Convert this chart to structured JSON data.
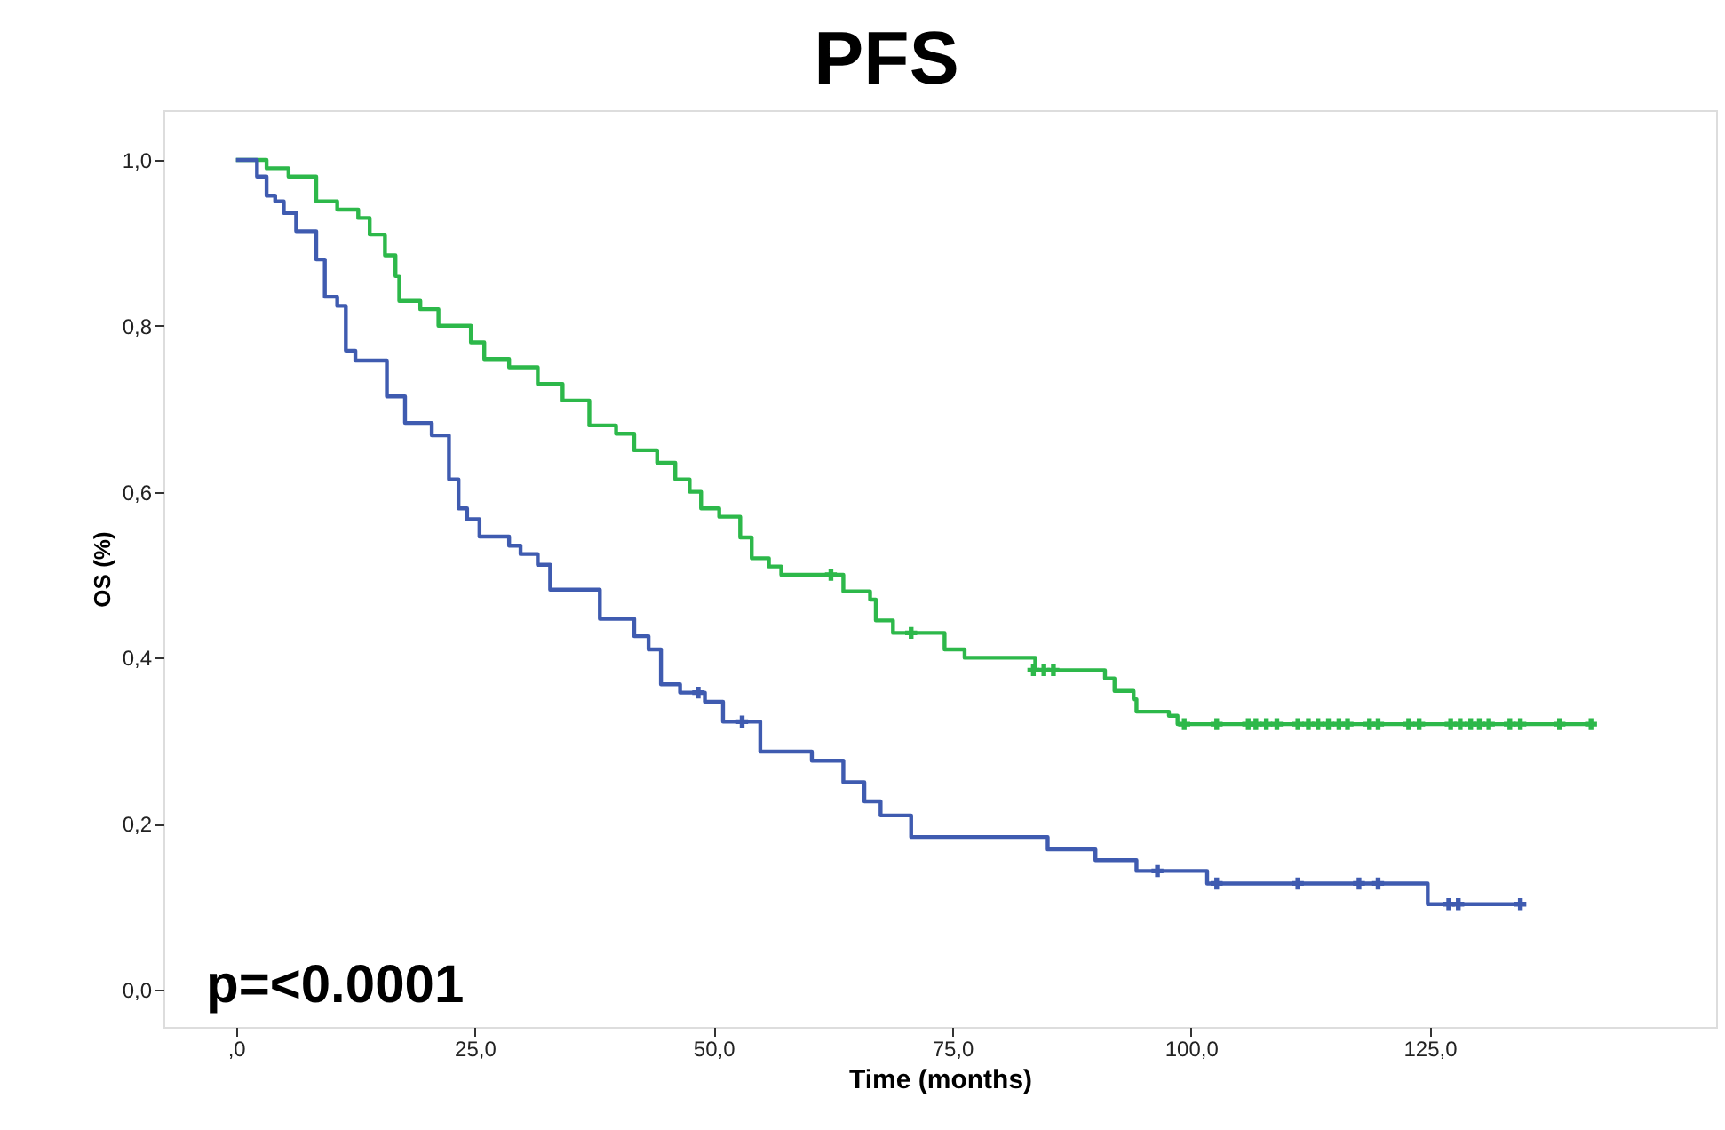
{
  "chart_data": {
    "type": "step",
    "title": "PFS",
    "xlabel": "Time (months)",
    "ylabel": "OS (%)",
    "xlim": [
      -7.6,
      155
    ],
    "ylim": [
      -0.045,
      1.06
    ],
    "xticks": [
      {
        "value": 0,
        "label": ",0"
      },
      {
        "value": 25,
        "label": "25,0"
      },
      {
        "value": 50,
        "label": "50,0"
      },
      {
        "value": 75,
        "label": "75,0"
      },
      {
        "value": 100,
        "label": "100,0"
      },
      {
        "value": 125,
        "label": "125,0"
      }
    ],
    "yticks": [
      {
        "value": 0,
        "label": "0,0"
      },
      {
        "value": 0.2,
        "label": "0,2"
      },
      {
        "value": 0.4,
        "label": "0,4"
      },
      {
        "value": 0.6,
        "label": "0,6"
      },
      {
        "value": 0.8,
        "label": "0,8"
      },
      {
        "value": 1.0,
        "label": "1,0"
      }
    ],
    "grid": false,
    "annotations": [
      "p=<0.0001"
    ],
    "series": [
      {
        "color": "#2db84a",
        "x": [
          0,
          3.2,
          5.5,
          8.4,
          10.6,
          12.8,
          14,
          15.6,
          16.7,
          17.1,
          19.3,
          21.2,
          24.6,
          26,
          28.6,
          31.6,
          34.2,
          37,
          39.8,
          41.7,
          44.1,
          46,
          47.5,
          48.7,
          50.6,
          52.8,
          54,
          55.8,
          57.1,
          63.6,
          66.4,
          67,
          68.8,
          74.2,
          76.3,
          83.7,
          91,
          92,
          94,
          94.3,
          97.7,
          98.6,
          141.9
        ],
        "values": [
          1.0,
          0.99,
          0.98,
          0.95,
          0.94,
          0.93,
          0.91,
          0.885,
          0.86,
          0.83,
          0.82,
          0.8,
          0.78,
          0.76,
          0.75,
          0.73,
          0.71,
          0.68,
          0.67,
          0.65,
          0.635,
          0.615,
          0.6,
          0.58,
          0.57,
          0.545,
          0.52,
          0.51,
          0.5,
          0.48,
          0.47,
          0.445,
          0.43,
          0.41,
          0.4,
          0.385,
          0.375,
          0.36,
          0.35,
          0.335,
          0.33,
          0.32,
          0.32
        ]
      },
      {
        "color": "#3f5bb0",
        "x": [
          0,
          2.2,
          3.2,
          4.1,
          5,
          6.3,
          8.4,
          9.3,
          10.6,
          11.5,
          12.5,
          15.8,
          17.7,
          20.5,
          22.3,
          23.3,
          24.2,
          25.5,
          28.6,
          29.8,
          31.6,
          32.9,
          38.1,
          41.7,
          43.2,
          44.5,
          46.5,
          49.1,
          51,
          54.9,
          60.3,
          63.6,
          65.8,
          67.5,
          70.7,
          85,
          90,
          94.3,
          101.7,
          124.8,
          134.5
        ],
        "values": [
          1.0,
          0.98,
          0.957,
          0.95,
          0.936,
          0.914,
          0.88,
          0.835,
          0.824,
          0.77,
          0.758,
          0.715,
          0.683,
          0.668,
          0.615,
          0.58,
          0.567,
          0.546,
          0.535,
          0.525,
          0.512,
          0.482,
          0.447,
          0.426,
          0.41,
          0.368,
          0.358,
          0.347,
          0.323,
          0.287,
          0.276,
          0.25,
          0.227,
          0.21,
          0.184,
          0.169,
          0.156,
          0.143,
          0.128,
          0.103,
          0.103
        ]
      },
      {
        "type": "scatter",
        "marker": "cross",
        "color": "#2db84a",
        "x": [
          62.3,
          70.7,
          83.5,
          84.6,
          85.6,
          99.3,
          102.7,
          106,
          106.8,
          107.9,
          109,
          111.2,
          112.3,
          113.3,
          114.4,
          115.5,
          116.4,
          118.7,
          119.6,
          122.8,
          123.9,
          127.2,
          128.2,
          129.3,
          130.2,
          131.2,
          133.4,
          134.5,
          138.6,
          141.9
        ],
        "values": [
          0.5,
          0.43,
          0.385,
          0.385,
          0.385,
          0.32,
          0.32,
          0.32,
          0.32,
          0.32,
          0.32,
          0.32,
          0.32,
          0.32,
          0.32,
          0.32,
          0.32,
          0.32,
          0.32,
          0.32,
          0.32,
          0.32,
          0.32,
          0.32,
          0.32,
          0.32,
          0.32,
          0.32,
          0.32,
          0.32
        ]
      },
      {
        "type": "scatter",
        "marker": "cross",
        "color": "#3f5bb0",
        "x": [
          48.4,
          53,
          96.5,
          102.7,
          111.2,
          117.6,
          119.6,
          127,
          128,
          134.5
        ],
        "values": [
          0.358,
          0.323,
          0.143,
          0.128,
          0.128,
          0.128,
          0.128,
          0.103,
          0.103,
          0.103
        ]
      }
    ]
  }
}
